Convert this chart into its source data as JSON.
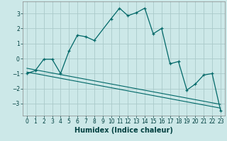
{
  "xlabel": "Humidex (Indice chaleur)",
  "background_color": "#cce8e8",
  "grid_color": "#aacaca",
  "line_color": "#006868",
  "xlim": [
    -0.5,
    23.5
  ],
  "ylim": [
    -3.8,
    3.8
  ],
  "yticks": [
    -3,
    -2,
    -1,
    0,
    1,
    2,
    3
  ],
  "xticks": [
    0,
    1,
    2,
    3,
    4,
    5,
    6,
    7,
    8,
    9,
    10,
    11,
    12,
    13,
    14,
    15,
    16,
    17,
    18,
    19,
    20,
    21,
    22,
    23
  ],
  "series1_x": [
    0,
    1,
    2,
    3,
    4,
    5,
    6,
    7,
    8,
    10,
    11,
    12,
    13,
    14,
    15,
    16,
    17,
    18,
    19,
    20,
    21,
    22,
    23
  ],
  "series1_y": [
    -1.0,
    -0.8,
    -0.05,
    -0.05,
    -1.0,
    0.5,
    1.55,
    1.45,
    1.2,
    2.65,
    3.35,
    2.85,
    3.05,
    3.35,
    1.65,
    2.0,
    -0.35,
    -0.2,
    -2.1,
    -1.7,
    -1.1,
    -1.0,
    -3.45
  ],
  "series2_x": [
    0,
    23
  ],
  "series2_y": [
    -0.9,
    -3.3
  ],
  "series3_x": [
    0,
    23
  ],
  "series3_y": [
    -0.65,
    -3.05
  ],
  "xlabel_fontsize": 7,
  "tick_fontsize": 5.5
}
